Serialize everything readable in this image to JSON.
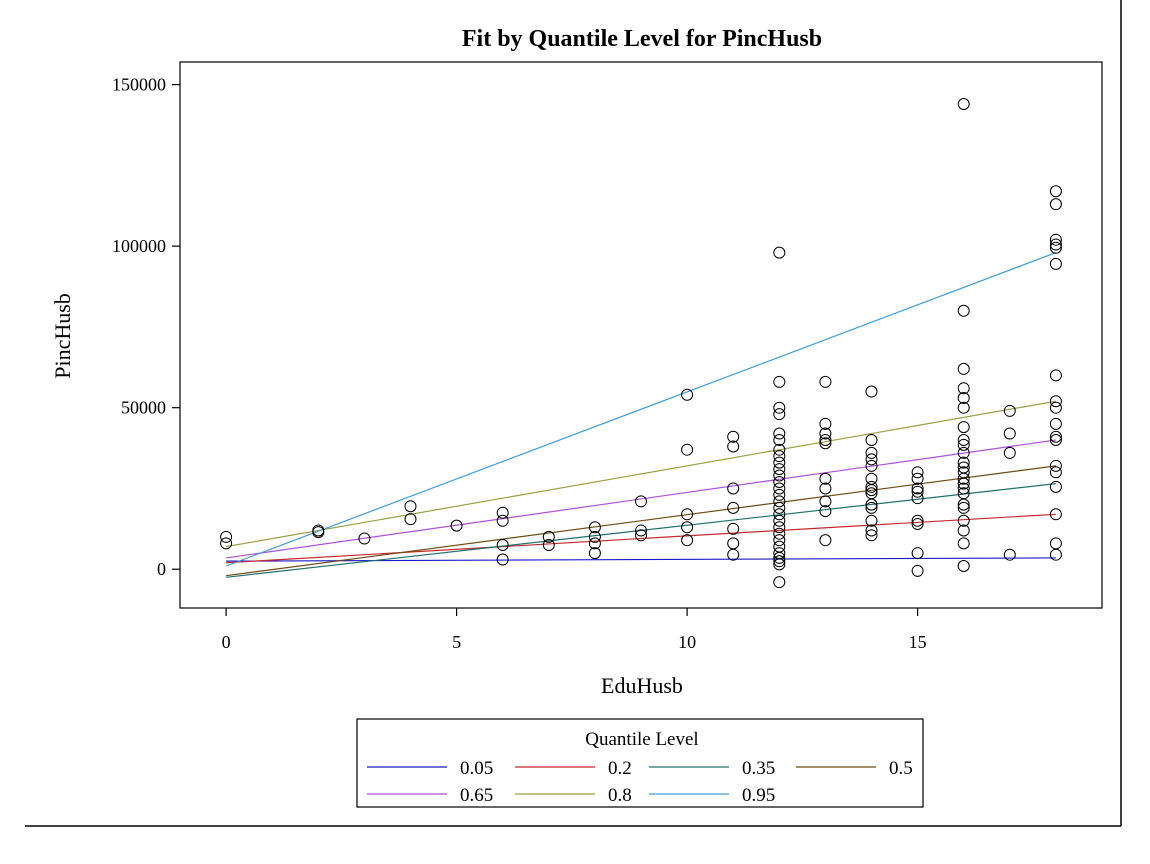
{
  "chart_data": {
    "type": "scatter",
    "title": "Fit by Quantile Level for PincHusb",
    "xlabel": "EduHusb",
    "ylabel": "PincHusb",
    "xlim": [
      -1,
      19
    ],
    "ylim": [
      -12000,
      157000
    ],
    "xticks": [
      0,
      5,
      10,
      15
    ],
    "yticks": [
      0,
      50000,
      100000,
      150000
    ],
    "grid": false,
    "legend": {
      "title": "Quantile Level",
      "placement": "bottom"
    },
    "points": [
      [
        0,
        10000
      ],
      [
        0,
        8000
      ],
      [
        2,
        12000
      ],
      [
        2,
        11500
      ],
      [
        3,
        9500
      ],
      [
        4,
        19500
      ],
      [
        4,
        15500
      ],
      [
        5,
        13500
      ],
      [
        6,
        17500
      ],
      [
        6,
        15000
      ],
      [
        6,
        7500
      ],
      [
        6,
        3000
      ],
      [
        7,
        10000
      ],
      [
        7,
        7500
      ],
      [
        8,
        13000
      ],
      [
        8,
        10000
      ],
      [
        8,
        8000
      ],
      [
        8,
        5000
      ],
      [
        9,
        21000
      ],
      [
        9,
        12000
      ],
      [
        9,
        10500
      ],
      [
        10,
        54000
      ],
      [
        10,
        37000
      ],
      [
        10,
        17000
      ],
      [
        10,
        13000
      ],
      [
        10,
        9000
      ],
      [
        11,
        41000
      ],
      [
        11,
        38000
      ],
      [
        11,
        25000
      ],
      [
        11,
        19000
      ],
      [
        11,
        12500
      ],
      [
        11,
        8000
      ],
      [
        11,
        4500
      ],
      [
        12,
        98000
      ],
      [
        12,
        58000
      ],
      [
        12,
        50000
      ],
      [
        12,
        48000
      ],
      [
        12,
        42000
      ],
      [
        12,
        40000
      ],
      [
        12,
        37000
      ],
      [
        12,
        35000
      ],
      [
        12,
        33000
      ],
      [
        12,
        31000
      ],
      [
        12,
        29000
      ],
      [
        12,
        27000
      ],
      [
        12,
        25000
      ],
      [
        12,
        23000
      ],
      [
        12,
        21000
      ],
      [
        12,
        19000
      ],
      [
        12,
        17000
      ],
      [
        12,
        15000
      ],
      [
        12,
        13000
      ],
      [
        12,
        11000
      ],
      [
        12,
        9000
      ],
      [
        12,
        7000
      ],
      [
        12,
        5000
      ],
      [
        12,
        3500
      ],
      [
        12,
        2500
      ],
      [
        12,
        1500
      ],
      [
        12,
        -4000
      ],
      [
        13,
        58000
      ],
      [
        13,
        45000
      ],
      [
        13,
        42000
      ],
      [
        13,
        40000
      ],
      [
        13,
        39000
      ],
      [
        13,
        28000
      ],
      [
        13,
        25000
      ],
      [
        13,
        21000
      ],
      [
        13,
        18000
      ],
      [
        13,
        9000
      ],
      [
        14,
        55000
      ],
      [
        14,
        40000
      ],
      [
        14,
        36000
      ],
      [
        14,
        34000
      ],
      [
        14,
        32000
      ],
      [
        14,
        28000
      ],
      [
        14,
        25500
      ],
      [
        14,
        24500
      ],
      [
        14,
        23500
      ],
      [
        14,
        20000
      ],
      [
        14,
        19000
      ],
      [
        14,
        15000
      ],
      [
        14,
        12000
      ],
      [
        14,
        10500
      ],
      [
        15,
        30000
      ],
      [
        15,
        28000
      ],
      [
        15,
        25000
      ],
      [
        15,
        24000
      ],
      [
        15,
        22000
      ],
      [
        15,
        15000
      ],
      [
        15,
        14000
      ],
      [
        15,
        5000
      ],
      [
        15,
        -500
      ],
      [
        16,
        144000
      ],
      [
        16,
        80000
      ],
      [
        16,
        62000
      ],
      [
        16,
        56000
      ],
      [
        16,
        53000
      ],
      [
        16,
        50000
      ],
      [
        16,
        44000
      ],
      [
        16,
        40000
      ],
      [
        16,
        38500
      ],
      [
        16,
        36000
      ],
      [
        16,
        33000
      ],
      [
        16,
        31500
      ],
      [
        16,
        30000
      ],
      [
        16,
        28000
      ],
      [
        16,
        26500
      ],
      [
        16,
        25000
      ],
      [
        16,
        23500
      ],
      [
        16,
        20000
      ],
      [
        16,
        19000
      ],
      [
        16,
        15000
      ],
      [
        16,
        12000
      ],
      [
        16,
        8000
      ],
      [
        16,
        1000
      ],
      [
        17,
        49000
      ],
      [
        17,
        42000
      ],
      [
        17,
        36000
      ],
      [
        17,
        4500
      ],
      [
        18,
        117000
      ],
      [
        18,
        113000
      ],
      [
        18,
        102000
      ],
      [
        18,
        100500
      ],
      [
        18,
        99500
      ],
      [
        18,
        94500
      ],
      [
        18,
        60000
      ],
      [
        18,
        52000
      ],
      [
        18,
        50000
      ],
      [
        18,
        45000
      ],
      [
        18,
        41000
      ],
      [
        18,
        40000
      ],
      [
        18,
        32000
      ],
      [
        18,
        30000
      ],
      [
        18,
        25500
      ],
      [
        18,
        17000
      ],
      [
        18,
        8000
      ],
      [
        18,
        4500
      ]
    ],
    "series": [
      {
        "name": "0.05",
        "color": "#1a1ac8",
        "x": [
          0,
          18
        ],
        "y": [
          2500,
          3500
        ]
      },
      {
        "name": "0.2",
        "color": "#c8282d",
        "x": [
          0,
          18
        ],
        "y": [
          2000,
          17000
        ]
      },
      {
        "name": "0.35",
        "color": "#207070",
        "x": [
          0,
          18
        ],
        "y": [
          -2500,
          26500
        ]
      },
      {
        "name": "0.5",
        "color": "#6b4b10",
        "x": [
          0,
          18
        ],
        "y": [
          -2000,
          32000
        ]
      },
      {
        "name": "0.65",
        "color": "#b050d8",
        "x": [
          0,
          18
        ],
        "y": [
          3500,
          40000
        ]
      },
      {
        "name": "0.8",
        "color": "#9aa040",
        "x": [
          0,
          18
        ],
        "y": [
          7000,
          52000
        ]
      },
      {
        "name": "0.95",
        "color": "#3c9ee0",
        "x": [
          0,
          18
        ],
        "y": [
          1000,
          98000
        ]
      }
    ]
  }
}
